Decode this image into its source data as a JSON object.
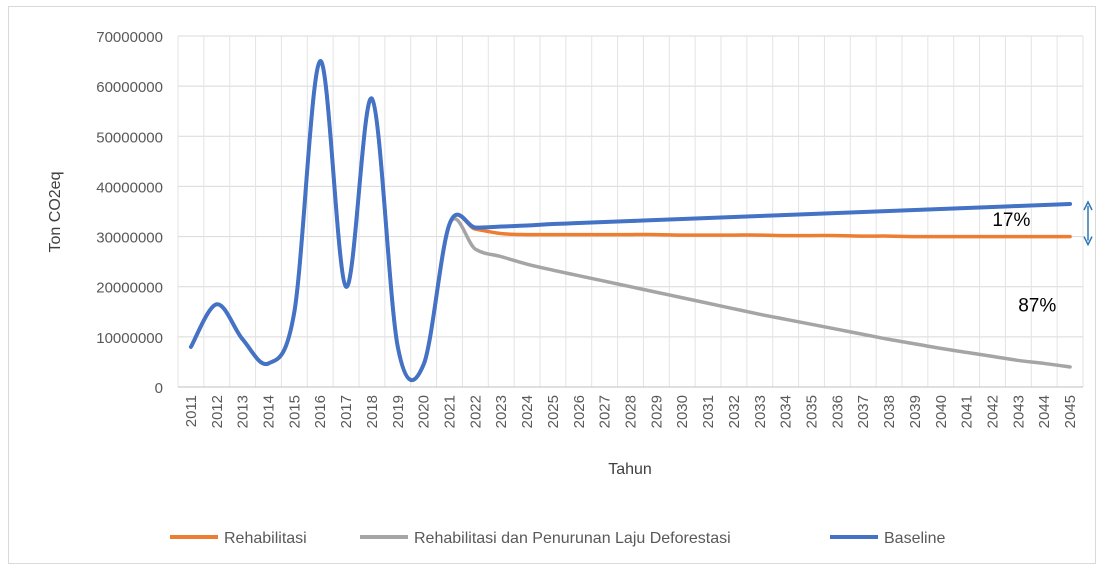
{
  "chart_data": {
    "type": "line",
    "xlabel": "Tahun",
    "ylabel": "Ton CO2eq",
    "ylim": [
      0,
      70000000
    ],
    "yticks": [
      "0",
      "10000000",
      "20000000",
      "30000000",
      "40000000",
      "50000000",
      "60000000",
      "70000000"
    ],
    "x": [
      "2011",
      "2012",
      "2013",
      "2014",
      "2015",
      "2016",
      "2017",
      "2018",
      "2019",
      "2020",
      "2021",
      "2022",
      "2023",
      "2024",
      "2025",
      "2026",
      "2027",
      "2028",
      "2029",
      "2030",
      "2031",
      "2032",
      "2033",
      "2034",
      "2035",
      "2036",
      "2037",
      "2038",
      "2039",
      "2040",
      "2041",
      "2042",
      "2043",
      "2044",
      "2045"
    ],
    "grid": true,
    "legend_position": "bottom",
    "series": [
      {
        "name": "Rehabilitasi",
        "color": "#ed7d31",
        "values": [
          8000000,
          16500000,
          9500000,
          4700000,
          15000000,
          65000000,
          20000000,
          57500000,
          8000000,
          4500000,
          32500000,
          31500000,
          30600000,
          30400000,
          30400000,
          30400000,
          30400000,
          30400000,
          30400000,
          30300000,
          30300000,
          30300000,
          30300000,
          30200000,
          30200000,
          30200000,
          30100000,
          30100000,
          30000000,
          30000000,
          30000000,
          30000000,
          30000000,
          30000000,
          30000000
        ]
      },
      {
        "name": "Rehabilitasi dan Penurunan Laju Deforestasi",
        "color": "#a5a5a5",
        "values": [
          8000000,
          16500000,
          9500000,
          4700000,
          15000000,
          65000000,
          20000000,
          57500000,
          8000000,
          4500000,
          32500000,
          27500000,
          26000000,
          24500000,
          23300000,
          22200000,
          21100000,
          20000000,
          18900000,
          17800000,
          16700000,
          15600000,
          14500000,
          13500000,
          12500000,
          11500000,
          10500000,
          9500000,
          8600000,
          7700000,
          6900000,
          6100000,
          5300000,
          4700000,
          4000000
        ]
      },
      {
        "name": "Baseline",
        "color": "#4472c4",
        "values": [
          8000000,
          16500000,
          9500000,
          4700000,
          15000000,
          65000000,
          20000000,
          57500000,
          8000000,
          4500000,
          32500000,
          31800000,
          32000000,
          32200000,
          32500000,
          32700000,
          32900000,
          33100000,
          33300000,
          33500000,
          33700000,
          33900000,
          34100000,
          34300000,
          34500000,
          34700000,
          34900000,
          35100000,
          35300000,
          35500000,
          35700000,
          35900000,
          36100000,
          36300000,
          36500000
        ]
      }
    ],
    "annotations": [
      {
        "text": "17%",
        "x": "2043",
        "y": 33500000
      },
      {
        "text": "87%",
        "x": "2044",
        "y": 16500000
      }
    ],
    "arrow_color": "#2e75b6"
  }
}
